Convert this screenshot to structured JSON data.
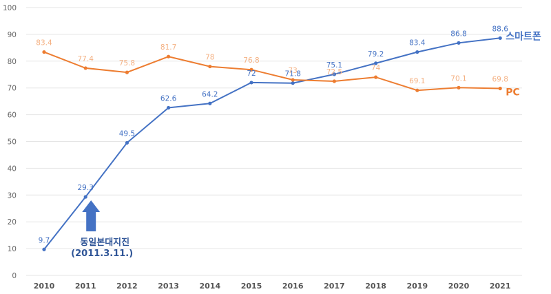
{
  "chart_data": {
    "type": "line",
    "categories": [
      "2010",
      "2011",
      "2012",
      "2013",
      "2014",
      "2015",
      "2016",
      "2017",
      "2018",
      "2019",
      "2020",
      "2021"
    ],
    "ylim": [
      0,
      100
    ],
    "yticks": [
      0,
      10,
      20,
      30,
      40,
      50,
      60,
      70,
      80,
      90,
      100
    ],
    "grid": true,
    "series": [
      {
        "name": "스마트폰",
        "color": "#4472c4",
        "label_color": "#4472c4",
        "values": [
          9.7,
          29.3,
          49.5,
          62.6,
          64.2,
          72,
          71.8,
          75.1,
          79.2,
          83.4,
          86.8,
          88.6
        ],
        "labels": [
          "9.7",
          "29.3",
          "49.5",
          "62.6",
          "64.2",
          "72",
          "71.8",
          "75.1",
          "79.2",
          "83.4",
          "86.8",
          "88.6"
        ]
      },
      {
        "name": "PC",
        "color": "#ed7d31",
        "label_color": "#f4b183",
        "values": [
          83.4,
          77.4,
          75.8,
          81.7,
          78,
          76.8,
          73,
          72.5,
          74,
          69.1,
          70.1,
          69.8
        ],
        "labels": [
          "83.4",
          "77.4",
          "75.8",
          "81.7",
          "78",
          "76.8",
          "73",
          "72.5",
          "74",
          "69.1",
          "70.1",
          "69.8"
        ]
      }
    ],
    "annotation": {
      "line1": "동일본대지진",
      "line2": "(2011.3.11.)",
      "category": "2011",
      "arrow_color": "#4472c4"
    }
  }
}
